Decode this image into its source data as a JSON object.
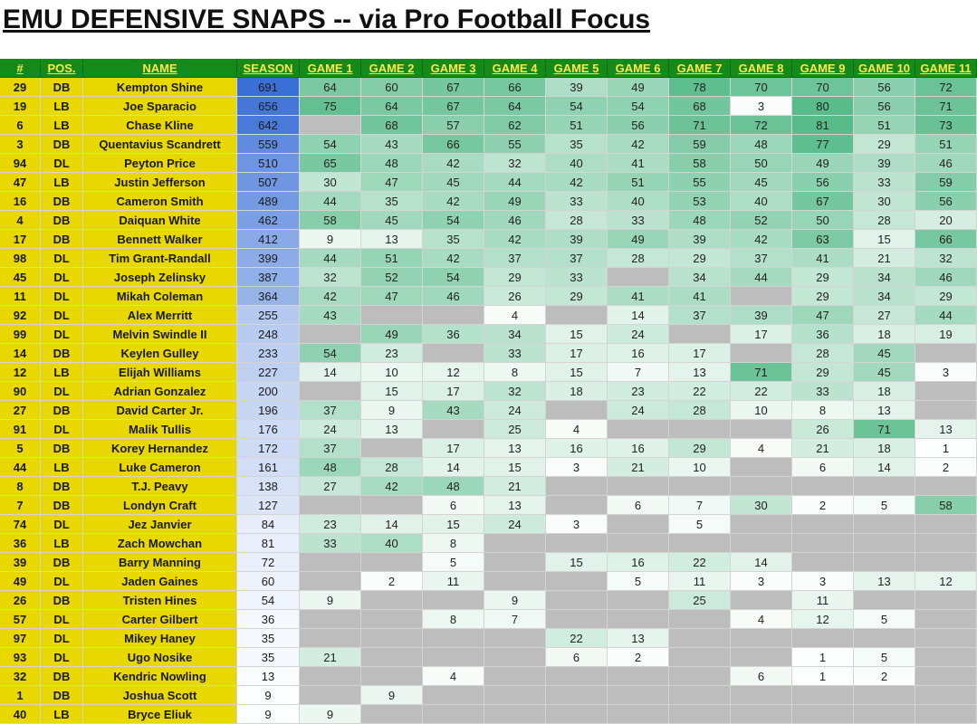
{
  "title": "EMU DEFENSIVE SNAPS -- via Pro Football Focus",
  "headers": [
    "#",
    "POS.",
    "NAME",
    "SEASON",
    "GAME 1",
    "GAME 2",
    "GAME 3",
    "GAME 4",
    "GAME 5",
    "GAME 6",
    "GAME 7",
    "GAME 8",
    "GAME 9",
    "GAME 10",
    "GAME 11"
  ],
  "colors": {
    "header_bg": "#138a1a",
    "header_text": "#ffe64a",
    "id_bg": "#e8d800",
    "missing": "#bdbdbd"
  },
  "players": [
    {
      "num": "29",
      "pos": "DB",
      "name": "Kempton Shine",
      "season": 691,
      "games": [
        64,
        60,
        67,
        66,
        39,
        49,
        78,
        70,
        70,
        56,
        72
      ]
    },
    {
      "num": "19",
      "pos": "LB",
      "name": "Joe Sparacio",
      "season": 656,
      "games": [
        75,
        64,
        67,
        64,
        54,
        54,
        68,
        3,
        80,
        56,
        71
      ]
    },
    {
      "num": "6",
      "pos": "LB",
      "name": "Chase Kline",
      "season": 642,
      "games": [
        null,
        68,
        57,
        62,
        51,
        56,
        71,
        72,
        81,
        51,
        73
      ]
    },
    {
      "num": "3",
      "pos": "DB",
      "name": "Quentavius Scandrett",
      "season": 559,
      "games": [
        54,
        43,
        66,
        55,
        35,
        42,
        59,
        48,
        77,
        29,
        51
      ]
    },
    {
      "num": "94",
      "pos": "DL",
      "name": "Peyton Price",
      "season": 510,
      "games": [
        65,
        48,
        42,
        32,
        40,
        41,
        58,
        50,
        49,
        39,
        46
      ]
    },
    {
      "num": "47",
      "pos": "LB",
      "name": "Justin Jefferson",
      "season": 507,
      "games": [
        30,
        47,
        45,
        44,
        42,
        51,
        55,
        45,
        56,
        33,
        59
      ]
    },
    {
      "num": "16",
      "pos": "DB",
      "name": "Cameron Smith",
      "season": 489,
      "games": [
        44,
        35,
        42,
        49,
        33,
        40,
        53,
        40,
        67,
        30,
        56
      ]
    },
    {
      "num": "4",
      "pos": "DB",
      "name": "Daiquan White",
      "season": 462,
      "games": [
        58,
        45,
        54,
        46,
        28,
        33,
        48,
        52,
        50,
        28,
        20
      ]
    },
    {
      "num": "17",
      "pos": "DB",
      "name": "Bennett Walker",
      "season": 412,
      "games": [
        9,
        13,
        35,
        42,
        39,
        49,
        39,
        42,
        63,
        15,
        66
      ]
    },
    {
      "num": "98",
      "pos": "DL",
      "name": "Tim Grant-Randall",
      "season": 399,
      "games": [
        44,
        51,
        42,
        37,
        37,
        28,
        29,
        37,
        41,
        21,
        32
      ]
    },
    {
      "num": "45",
      "pos": "DL",
      "name": "Joseph Zelinsky",
      "season": 387,
      "games": [
        32,
        52,
        54,
        29,
        33,
        null,
        34,
        44,
        29,
        34,
        46
      ]
    },
    {
      "num": "11",
      "pos": "DL",
      "name": "Mikah Coleman",
      "season": 364,
      "games": [
        42,
        47,
        46,
        26,
        29,
        41,
        41,
        null,
        29,
        34,
        29
      ]
    },
    {
      "num": "92",
      "pos": "DL",
      "name": "Alex Merritt",
      "season": 255,
      "games": [
        43,
        null,
        null,
        4,
        null,
        14,
        37,
        39,
        47,
        27,
        44
      ]
    },
    {
      "num": "99",
      "pos": "DL",
      "name": "Melvin Swindle II",
      "season": 248,
      "games": [
        null,
        49,
        36,
        34,
        15,
        24,
        null,
        17,
        36,
        18,
        19
      ]
    },
    {
      "num": "14",
      "pos": "DB",
      "name": "Keylen Gulley",
      "season": 233,
      "games": [
        54,
        23,
        null,
        33,
        17,
        16,
        17,
        null,
        28,
        45,
        null
      ]
    },
    {
      "num": "12",
      "pos": "LB",
      "name": "Elijah Williams",
      "season": 227,
      "games": [
        14,
        10,
        12,
        8,
        15,
        7,
        13,
        71,
        29,
        45,
        3
      ]
    },
    {
      "num": "90",
      "pos": "DL",
      "name": "Adrian Gonzalez",
      "season": 200,
      "games": [
        null,
        15,
        17,
        32,
        18,
        23,
        22,
        22,
        33,
        18,
        null
      ]
    },
    {
      "num": "27",
      "pos": "DB",
      "name": "David Carter Jr.",
      "season": 196,
      "games": [
        37,
        9,
        43,
        24,
        null,
        24,
        28,
        10,
        8,
        13,
        null
      ]
    },
    {
      "num": "91",
      "pos": "DL",
      "name": "Malik Tullis",
      "season": 176,
      "games": [
        24,
        13,
        null,
        25,
        4,
        null,
        null,
        null,
        26,
        71,
        13
      ]
    },
    {
      "num": "5",
      "pos": "DB",
      "name": "Korey Hernandez",
      "season": 172,
      "games": [
        37,
        null,
        17,
        13,
        16,
        16,
        29,
        4,
        21,
        18,
        1
      ]
    },
    {
      "num": "44",
      "pos": "LB",
      "name": "Luke Cameron",
      "season": 161,
      "games": [
        48,
        28,
        14,
        15,
        3,
        21,
        10,
        null,
        6,
        14,
        2
      ]
    },
    {
      "num": "8",
      "pos": "DB",
      "name": "T.J. Peavy",
      "season": 138,
      "games": [
        27,
        42,
        48,
        21,
        null,
        null,
        null,
        null,
        null,
        null,
        null
      ]
    },
    {
      "num": "7",
      "pos": "DB",
      "name": "Londyn Craft",
      "season": 127,
      "games": [
        null,
        null,
        6,
        13,
        null,
        6,
        7,
        30,
        2,
        5,
        58
      ]
    },
    {
      "num": "74",
      "pos": "DL",
      "name": "Jez Janvier",
      "season": 84,
      "games": [
        23,
        14,
        15,
        24,
        3,
        null,
        5,
        null,
        null,
        null,
        null
      ]
    },
    {
      "num": "36",
      "pos": "LB",
      "name": "Zach Mowchan",
      "season": 81,
      "games": [
        33,
        40,
        8,
        null,
        null,
        null,
        null,
        null,
        null,
        null,
        null
      ]
    },
    {
      "num": "39",
      "pos": "DB",
      "name": "Barry Manning",
      "season": 72,
      "games": [
        null,
        null,
        5,
        null,
        15,
        16,
        22,
        14,
        null,
        null,
        null
      ]
    },
    {
      "num": "49",
      "pos": "DL",
      "name": "Jaden Gaines",
      "season": 60,
      "games": [
        null,
        2,
        11,
        null,
        null,
        5,
        11,
        3,
        3,
        13,
        12
      ]
    },
    {
      "num": "26",
      "pos": "DB",
      "name": "Tristen Hines",
      "season": 54,
      "games": [
        9,
        null,
        null,
        9,
        null,
        null,
        25,
        null,
        11,
        null,
        null
      ]
    },
    {
      "num": "57",
      "pos": "DL",
      "name": "Carter Gilbert",
      "season": 36,
      "games": [
        null,
        null,
        8,
        7,
        null,
        null,
        null,
        4,
        12,
        5,
        null
      ]
    },
    {
      "num": "97",
      "pos": "DL",
      "name": "Mikey Haney",
      "season": 35,
      "games": [
        null,
        null,
        null,
        null,
        22,
        13,
        null,
        null,
        null,
        null,
        null
      ]
    },
    {
      "num": "93",
      "pos": "DL",
      "name": "Ugo Nosike",
      "season": 35,
      "games": [
        21,
        null,
        null,
        null,
        6,
        2,
        null,
        null,
        1,
        5,
        null
      ]
    },
    {
      "num": "32",
      "pos": "DB",
      "name": "Kendric Nowling",
      "season": 13,
      "games": [
        null,
        null,
        4,
        null,
        null,
        null,
        null,
        6,
        1,
        2,
        null
      ]
    },
    {
      "num": "1",
      "pos": "DB",
      "name": "Joshua Scott",
      "season": 9,
      "games": [
        null,
        9,
        null,
        null,
        null,
        null,
        null,
        null,
        null,
        null,
        null
      ]
    },
    {
      "num": "40",
      "pos": "LB",
      "name": "Bryce Eliuk",
      "season": 9,
      "games": [
        9,
        null,
        null,
        null,
        null,
        null,
        null,
        null,
        null,
        null,
        null
      ]
    }
  ]
}
